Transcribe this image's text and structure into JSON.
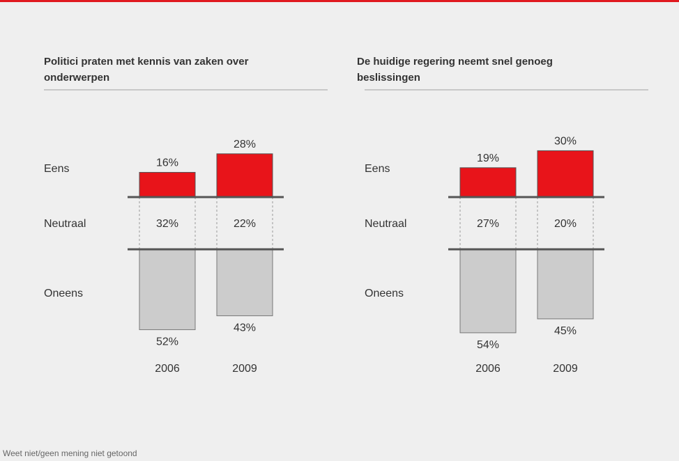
{
  "chart_data": [
    {
      "type": "diverging_bar",
      "title": "Politici praten met kennis van zaken over onderwerpen",
      "categories": [
        "2006",
        "2009"
      ],
      "series": [
        {
          "name": "Eens",
          "color": "#e8141a",
          "values": [
            16,
            28
          ],
          "value_labels": [
            "16%",
            "28%"
          ]
        },
        {
          "name": "Neutraal",
          "values": [
            32,
            22
          ],
          "value_labels": [
            "32%",
            "22%"
          ]
        },
        {
          "name": "Oneens",
          "color": "#cccccc",
          "values": [
            52,
            43
          ],
          "value_labels": [
            "52%",
            "43%"
          ]
        }
      ]
    },
    {
      "type": "diverging_bar",
      "title": "De huidige regering neemt snel genoeg beslissingen",
      "categories": [
        "2006",
        "2009"
      ],
      "series": [
        {
          "name": "Eens",
          "color": "#e8141a",
          "values": [
            19,
            30
          ],
          "value_labels": [
            "19%",
            "30%"
          ]
        },
        {
          "name": "Neutraal",
          "values": [
            27,
            20
          ],
          "value_labels": [
            "27%",
            "20%"
          ]
        },
        {
          "name": "Oneens",
          "color": "#cccccc",
          "values": [
            54,
            45
          ],
          "value_labels": [
            "54%",
            "45%"
          ]
        }
      ]
    }
  ],
  "footnote": "Weet niet/geen mening niet getoond"
}
